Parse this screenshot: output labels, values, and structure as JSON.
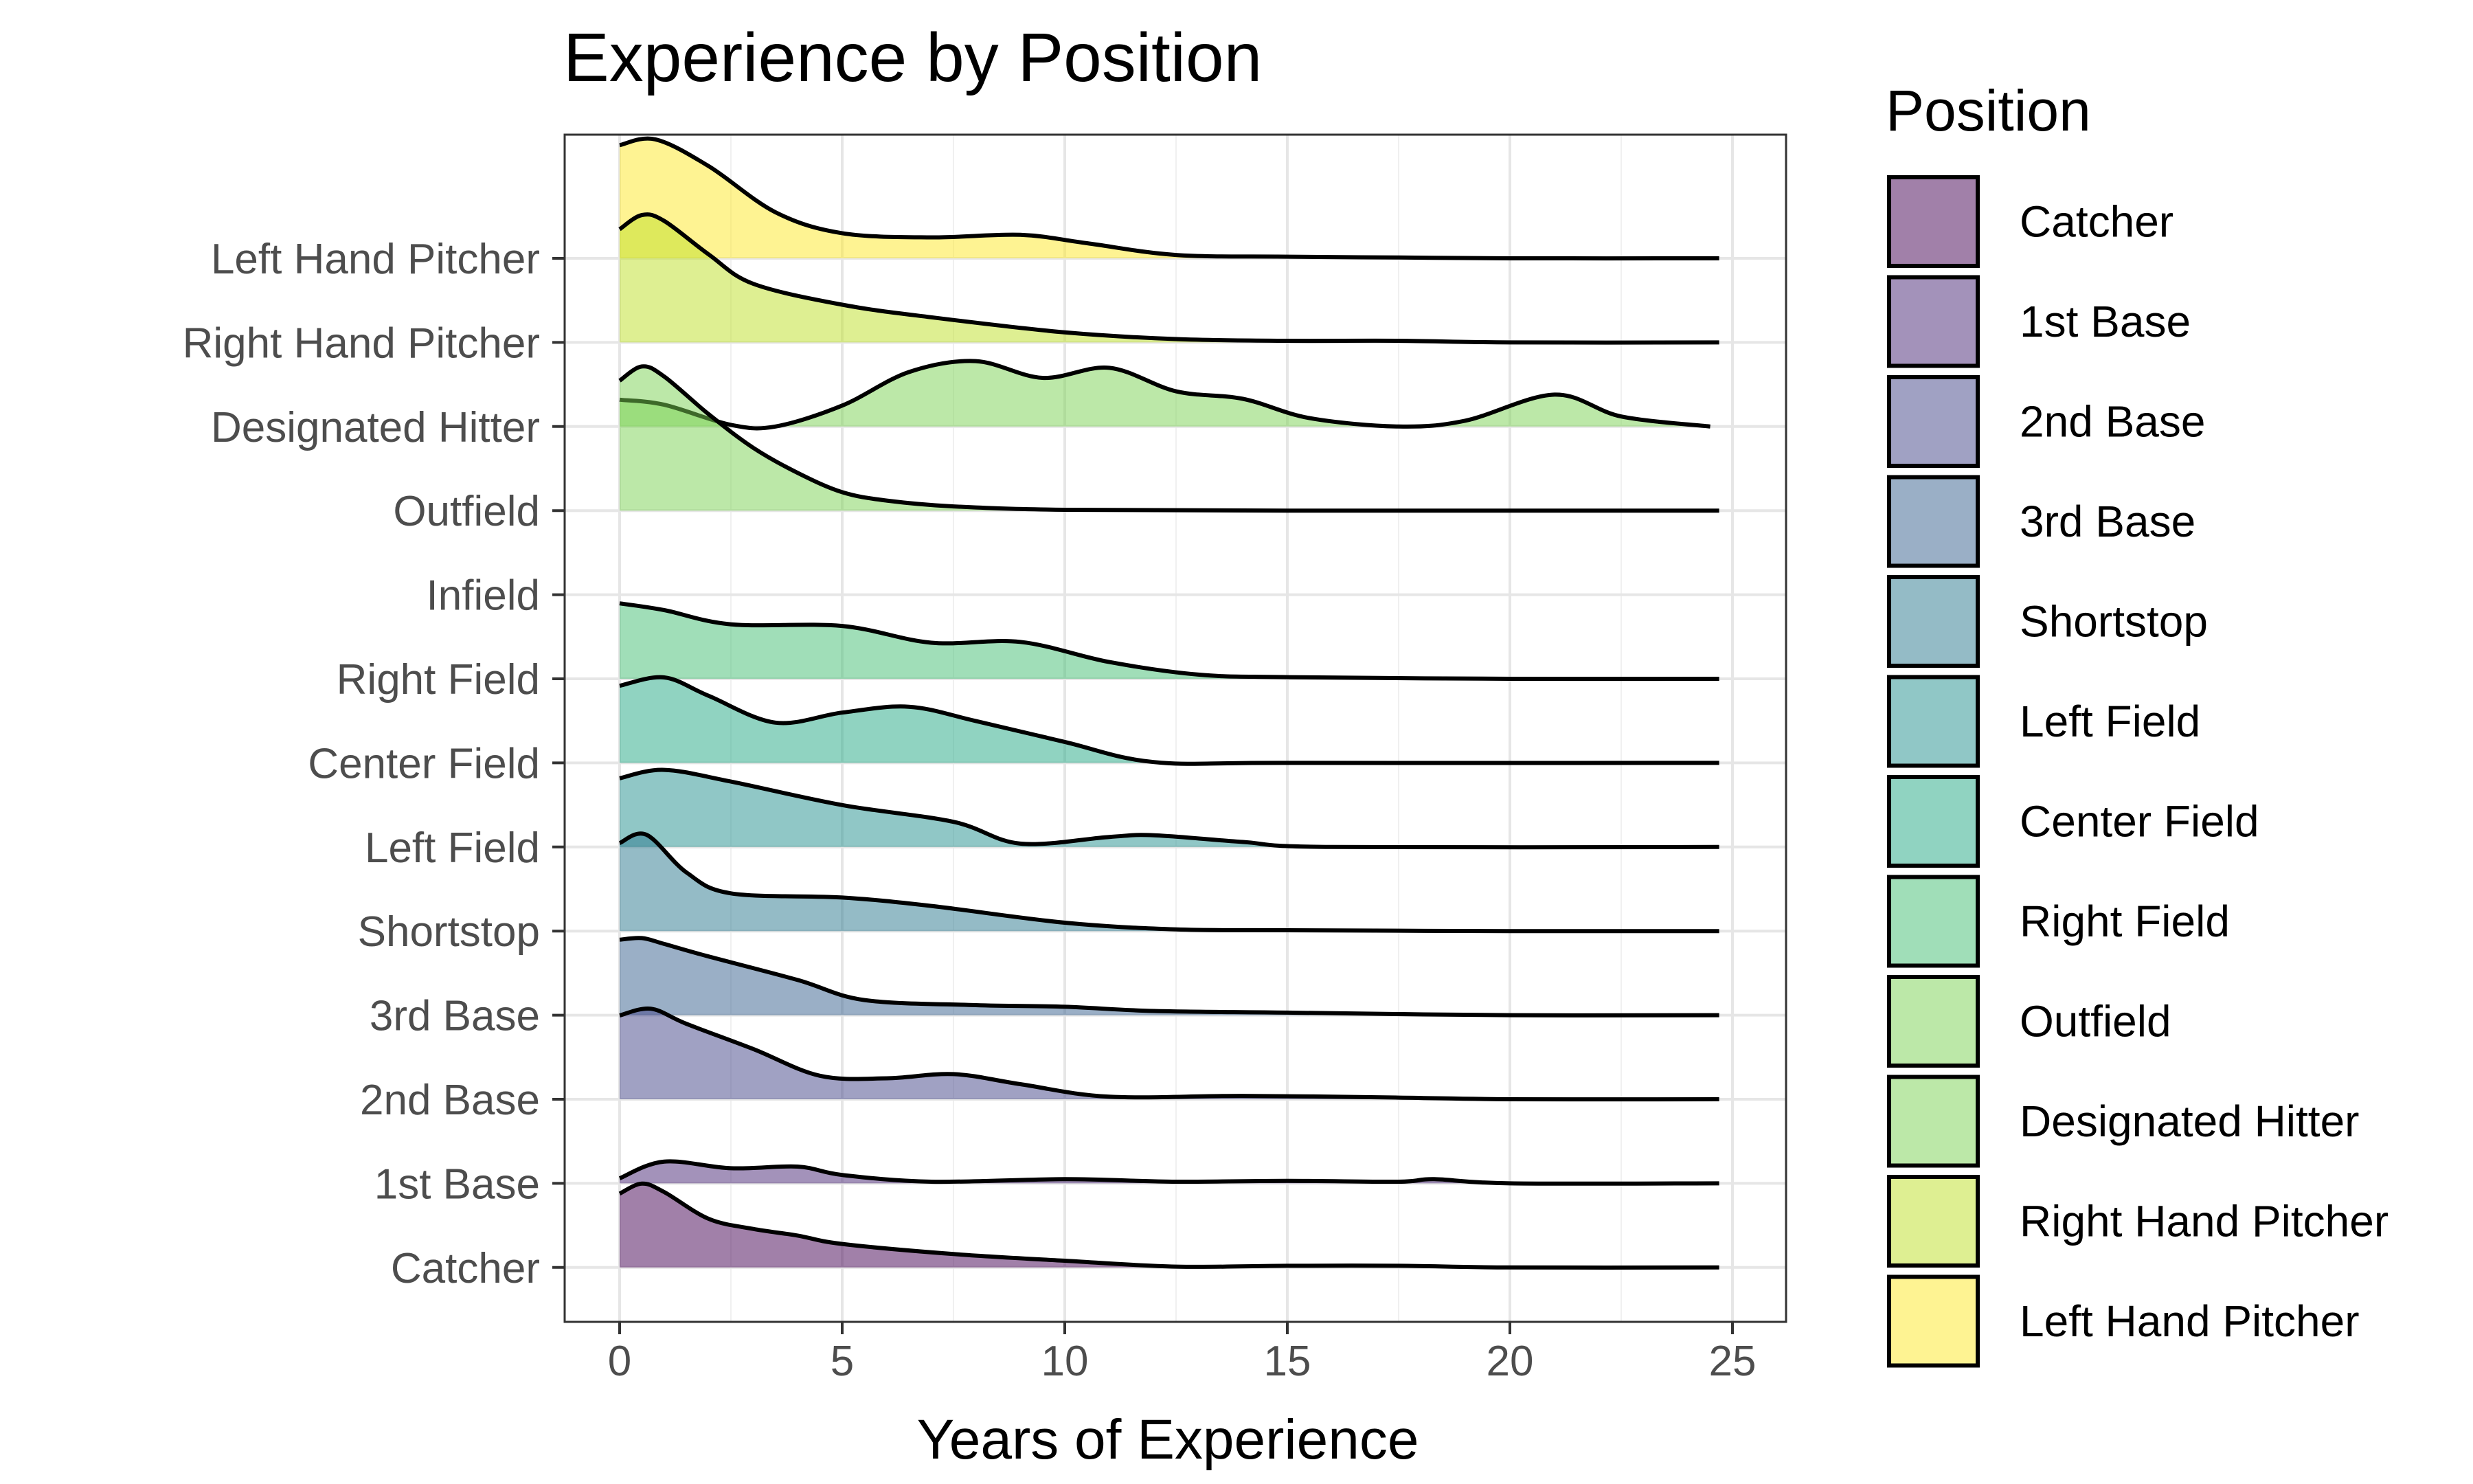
{
  "chart_data": {
    "type": "ridgeline",
    "title": "Experience by Position",
    "xlabel": "Years of Experience",
    "ylabel": "",
    "xlim": [
      -1.2,
      26.2
    ],
    "x_ticks": [
      0,
      5,
      10,
      15,
      20,
      25
    ],
    "grid": true,
    "legend": {
      "title": "Position",
      "placement": "right"
    },
    "categories": [
      "Catcher",
      "1st Base",
      "2nd Base",
      "3rd Base",
      "Shortstop",
      "Left Field",
      "Center Field",
      "Right Field",
      "Infield",
      "Outfield",
      "Designated Hitter",
      "Right Hand Pitcher",
      "Left Hand Pitcher"
    ],
    "series": [
      {
        "name": "Catcher",
        "color": "#440154",
        "density": [
          [
            0,
            0.88
          ],
          [
            0.5,
            1.0
          ],
          [
            1,
            0.9
          ],
          [
            2,
            0.58
          ],
          [
            3,
            0.46
          ],
          [
            4,
            0.38
          ],
          [
            5,
            0.28
          ],
          [
            7.5,
            0.16
          ],
          [
            10,
            0.08
          ],
          [
            12.5,
            0.01
          ],
          [
            15,
            0.02
          ],
          [
            17.5,
            0.02
          ],
          [
            20,
            0.0
          ],
          [
            24.7,
            0.0
          ]
        ]
      },
      {
        "name": "1st Base",
        "color": "#482576",
        "density": [
          [
            0,
            0.06
          ],
          [
            1,
            0.26
          ],
          [
            2.5,
            0.18
          ],
          [
            4,
            0.2
          ],
          [
            5,
            0.1
          ],
          [
            7,
            0.02
          ],
          [
            10,
            0.05
          ],
          [
            12.5,
            0.02
          ],
          [
            15,
            0.03
          ],
          [
            17.5,
            0.02
          ],
          [
            18.3,
            0.05
          ],
          [
            20,
            0.0
          ],
          [
            24.7,
            0.0
          ]
        ]
      },
      {
        "name": "2nd Base",
        "color": "#414487",
        "density": [
          [
            0,
            1.0
          ],
          [
            0.7,
            1.08
          ],
          [
            1.5,
            0.9
          ],
          [
            3,
            0.6
          ],
          [
            4.5,
            0.28
          ],
          [
            6,
            0.25
          ],
          [
            7.5,
            0.3
          ],
          [
            9,
            0.18
          ],
          [
            11,
            0.03
          ],
          [
            14,
            0.04
          ],
          [
            17.5,
            0.02
          ],
          [
            20,
            0.0
          ],
          [
            24.7,
            0.0
          ]
        ]
      },
      {
        "name": "3rd Base",
        "color": "#35608d",
        "density": [
          [
            0,
            0.9
          ],
          [
            0.5,
            0.92
          ],
          [
            1,
            0.85
          ],
          [
            2,
            0.7
          ],
          [
            4,
            0.42
          ],
          [
            5.5,
            0.18
          ],
          [
            8,
            0.12
          ],
          [
            10,
            0.1
          ],
          [
            12,
            0.05
          ],
          [
            15,
            0.03
          ],
          [
            20,
            0.0
          ],
          [
            24.7,
            0.0
          ]
        ]
      },
      {
        "name": "Shortstop",
        "color": "#2a788e",
        "density": [
          [
            0,
            1.05
          ],
          [
            0.6,
            1.15
          ],
          [
            1.5,
            0.7
          ],
          [
            2.5,
            0.45
          ],
          [
            5,
            0.4
          ],
          [
            7,
            0.3
          ],
          [
            10,
            0.1
          ],
          [
            12.5,
            0.02
          ],
          [
            15,
            0.01
          ],
          [
            20,
            0.0
          ],
          [
            24.7,
            0.0
          ]
        ]
      },
      {
        "name": "Left Field",
        "color": "#21908d",
        "density": [
          [
            0,
            0.82
          ],
          [
            1,
            0.92
          ],
          [
            2.5,
            0.78
          ],
          [
            5,
            0.5
          ],
          [
            7.5,
            0.3
          ],
          [
            9,
            0.04
          ],
          [
            11,
            0.12
          ],
          [
            12,
            0.14
          ],
          [
            14,
            0.06
          ],
          [
            16,
            0.0
          ],
          [
            24.7,
            0.0
          ]
        ]
      },
      {
        "name": "Center Field",
        "color": "#22a884",
        "density": [
          [
            0,
            0.92
          ],
          [
            1,
            1.02
          ],
          [
            2,
            0.8
          ],
          [
            3.5,
            0.48
          ],
          [
            5,
            0.6
          ],
          [
            6.5,
            0.67
          ],
          [
            8,
            0.5
          ],
          [
            10,
            0.25
          ],
          [
            12,
            0.01
          ],
          [
            15,
            0.0
          ],
          [
            24.7,
            0.0
          ]
        ]
      },
      {
        "name": "Right Field",
        "color": "#42be71",
        "density": [
          [
            0,
            0.9
          ],
          [
            1,
            0.82
          ],
          [
            2.5,
            0.65
          ],
          [
            5,
            0.63
          ],
          [
            7,
            0.43
          ],
          [
            9,
            0.44
          ],
          [
            11,
            0.2
          ],
          [
            13,
            0.05
          ],
          [
            15,
            0.02
          ],
          [
            20,
            0.0
          ],
          [
            24.7,
            0.0
          ]
        ]
      },
      {
        "name": "Infield",
        "color": "#7ad151",
        "density": []
      },
      {
        "name": "Outfield",
        "color": "#7ad151",
        "density": [
          [
            0,
            1.55
          ],
          [
            0.5,
            1.72
          ],
          [
            1,
            1.6
          ],
          [
            2,
            1.15
          ],
          [
            3,
            0.75
          ],
          [
            4,
            0.45
          ],
          [
            5,
            0.22
          ],
          [
            6,
            0.12
          ],
          [
            7.5,
            0.05
          ],
          [
            10,
            0.01
          ],
          [
            15,
            0.0
          ],
          [
            24.7,
            0.0
          ]
        ]
      },
      {
        "name": "Designated Hitter",
        "color": "#7ad151",
        "density": [
          [
            0,
            0.32
          ],
          [
            1,
            0.26
          ],
          [
            2.5,
            0.02
          ],
          [
            3.5,
            0.0
          ],
          [
            5,
            0.25
          ],
          [
            6.5,
            0.65
          ],
          [
            8,
            0.78
          ],
          [
            9.5,
            0.58
          ],
          [
            11,
            0.7
          ],
          [
            12.5,
            0.42
          ],
          [
            14,
            0.33
          ],
          [
            15.5,
            0.1
          ],
          [
            17.5,
            0.0
          ],
          [
            19,
            0.07
          ],
          [
            21,
            0.38
          ],
          [
            22.5,
            0.12
          ],
          [
            24.5,
            0.0
          ]
        ]
      },
      {
        "name": "Right Hand Pitcher",
        "color": "#bddf26",
        "density": [
          [
            0,
            1.35
          ],
          [
            0.5,
            1.52
          ],
          [
            1,
            1.45
          ],
          [
            2,
            1.05
          ],
          [
            3,
            0.7
          ],
          [
            5,
            0.45
          ],
          [
            7,
            0.3
          ],
          [
            10,
            0.12
          ],
          [
            12.5,
            0.04
          ],
          [
            15,
            0.02
          ],
          [
            17.5,
            0.02
          ],
          [
            20,
            0.0
          ],
          [
            24.7,
            0.0
          ]
        ]
      },
      {
        "name": "Left Hand Pitcher",
        "color": "#fde725",
        "density": [
          [
            0,
            1.35
          ],
          [
            0.8,
            1.42
          ],
          [
            2,
            1.1
          ],
          [
            3.5,
            0.55
          ],
          [
            5,
            0.3
          ],
          [
            7,
            0.25
          ],
          [
            9,
            0.28
          ],
          [
            10.5,
            0.18
          ],
          [
            12.5,
            0.04
          ],
          [
            15,
            0.02
          ],
          [
            17.5,
            0.01
          ],
          [
            20,
            0.0
          ],
          [
            24.7,
            0.0
          ]
        ]
      }
    ]
  },
  "legend": {
    "title": "Position",
    "items": [
      {
        "label": "Catcher",
        "color": "#440154"
      },
      {
        "label": "1st Base",
        "color": "#482576"
      },
      {
        "label": "2nd Base",
        "color": "#414487"
      },
      {
        "label": "3rd Base",
        "color": "#35608d"
      },
      {
        "label": "Shortstop",
        "color": "#2a788e"
      },
      {
        "label": "Left Field",
        "color": "#21908d"
      },
      {
        "label": "Center Field",
        "color": "#22a884"
      },
      {
        "label": "Right Field",
        "color": "#42be71"
      },
      {
        "label": "Outfield",
        "color": "#7ad151"
      },
      {
        "label": "Designated Hitter",
        "color": "#7ad151"
      },
      {
        "label": "Right Hand Pitcher",
        "color": "#bddf26"
      },
      {
        "label": "Left Hand Pitcher",
        "color": "#fde725"
      }
    ]
  }
}
